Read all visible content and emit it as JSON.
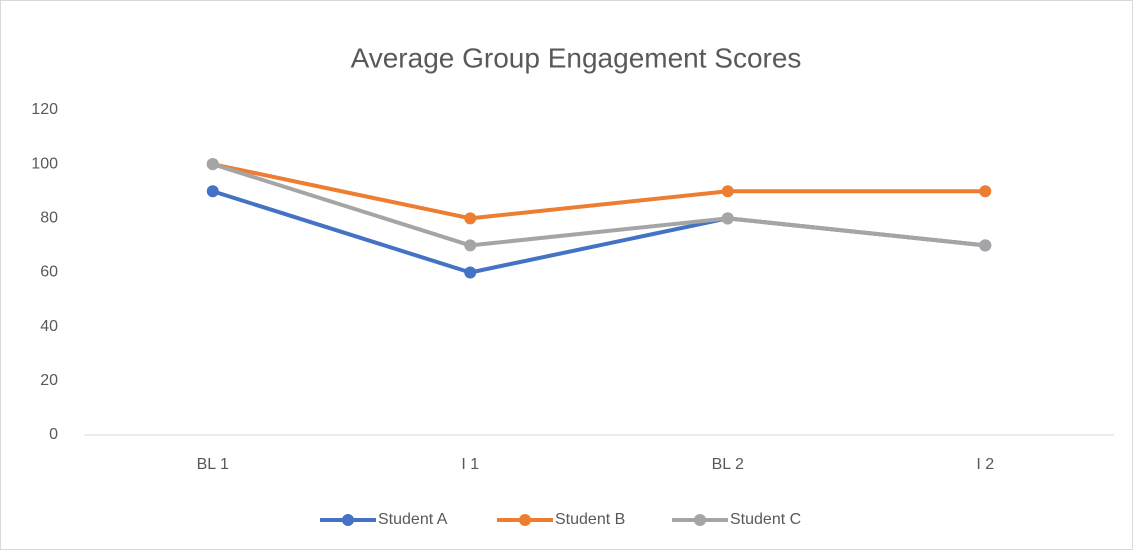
{
  "chart_data": {
    "type": "line",
    "title": "Average Group Engagement Scores",
    "categories": [
      "BL 1",
      "I 1",
      "BL 2",
      "I 2"
    ],
    "series": [
      {
        "name": "Student A",
        "color": "#4472c4",
        "values": [
          90,
          60,
          80,
          70
        ]
      },
      {
        "name": "Student B",
        "color": "#ed7d31",
        "values": [
          100,
          80,
          90,
          90
        ]
      },
      {
        "name": "Student C",
        "color": "#a5a5a5",
        "values": [
          100,
          70,
          80,
          70
        ]
      }
    ],
    "ylim": [
      0,
      120
    ],
    "yticks": [
      0,
      20,
      40,
      60,
      80,
      100,
      120
    ],
    "grid": false,
    "legend": "bottom"
  }
}
